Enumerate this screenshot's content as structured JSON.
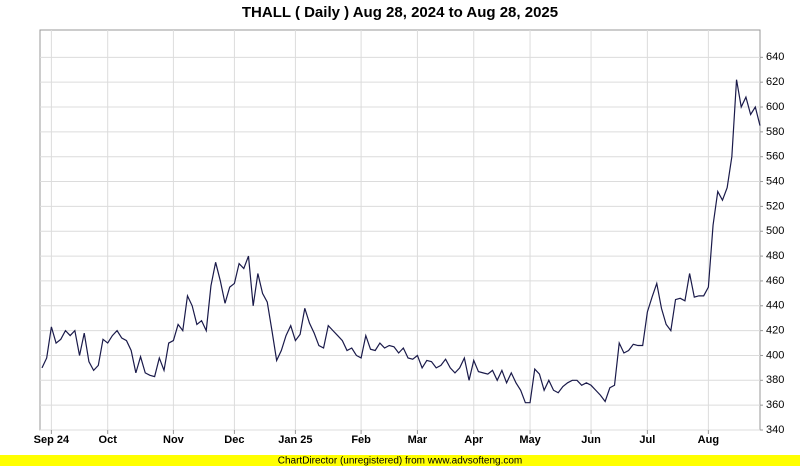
{
  "chart_data": {
    "type": "line",
    "title": "THALL ( Daily ) Aug 28, 2024 to Aug 28, 2025",
    "footer": "ChartDirector (unregistered) from www.advsofteng.com",
    "categories": [
      null,
      null,
      "Sep 24",
      null,
      null,
      null,
      null,
      null,
      null,
      null,
      null,
      null,
      null,
      null,
      "Oct",
      null,
      null,
      null,
      null,
      null,
      null,
      null,
      null,
      null,
      null,
      null,
      null,
      null,
      "Nov",
      null,
      null,
      null,
      null,
      null,
      null,
      null,
      null,
      null,
      null,
      null,
      null,
      "Dec",
      null,
      null,
      null,
      null,
      null,
      null,
      null,
      null,
      null,
      null,
      null,
      null,
      "Jan 25",
      null,
      null,
      null,
      null,
      null,
      null,
      null,
      null,
      null,
      null,
      null,
      null,
      null,
      "Feb",
      null,
      null,
      null,
      null,
      null,
      null,
      null,
      null,
      null,
      null,
      null,
      "Mar",
      null,
      null,
      null,
      null,
      null,
      null,
      null,
      null,
      null,
      null,
      null,
      "Apr",
      null,
      null,
      null,
      null,
      null,
      null,
      null,
      null,
      null,
      null,
      null,
      "May",
      null,
      null,
      null,
      null,
      null,
      null,
      null,
      null,
      null,
      null,
      null,
      null,
      "Jun",
      null,
      null,
      null,
      null,
      null,
      null,
      null,
      null,
      null,
      null,
      null,
      "Jul",
      null,
      null,
      null,
      null,
      null,
      null,
      null,
      null,
      null,
      null,
      null,
      null,
      "Aug",
      null,
      null,
      null,
      null,
      null,
      null,
      null,
      null,
      null,
      null,
      null
    ],
    "series": [
      {
        "name": "THALL",
        "color": "#1a1a4a",
        "values": [
          390,
          398,
          423,
          410,
          413,
          420,
          416,
          420,
          400,
          418,
          395,
          388,
          392,
          413,
          410,
          416,
          420,
          414,
          412,
          404,
          386,
          399,
          386,
          384,
          383,
          398,
          388,
          410,
          412,
          425,
          420,
          448,
          440,
          425,
          428,
          420,
          456,
          475,
          460,
          442,
          455,
          458,
          474,
          470,
          480,
          440,
          466,
          450,
          443,
          420,
          396,
          404,
          416,
          424,
          412,
          417,
          438,
          426,
          418,
          408,
          406,
          424,
          420,
          416,
          412,
          404,
          406,
          400,
          398,
          416,
          405,
          404,
          410,
          406,
          408,
          407,
          402,
          406,
          398,
          397,
          400,
          390,
          396,
          395,
          390,
          392,
          397,
          390,
          386,
          390,
          398,
          380,
          396,
          387,
          386,
          385,
          388,
          380,
          388,
          378,
          386,
          378,
          372,
          362,
          362,
          389,
          385,
          372,
          380,
          372,
          370,
          375,
          378,
          380,
          380,
          376,
          378,
          376,
          372,
          368,
          363,
          374,
          376,
          410,
          402,
          404,
          409,
          408,
          408,
          435,
          447,
          458,
          438,
          425,
          420,
          445,
          446,
          444,
          466,
          447,
          448,
          448,
          455,
          505,
          532,
          525,
          535,
          560,
          622,
          600,
          608,
          594,
          600,
          585
        ]
      }
    ],
    "ylim": [
      340,
      662
    ],
    "yticks": [
      340,
      360,
      380,
      400,
      420,
      440,
      460,
      480,
      500,
      520,
      540,
      560,
      580,
      600,
      620,
      640
    ],
    "grid": true
  }
}
